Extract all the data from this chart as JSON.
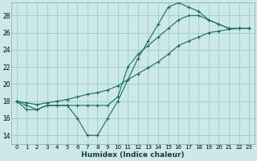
{
  "xlabel": "Humidex (Indice chaleur)",
  "xlim": [
    -0.5,
    23.5
  ],
  "ylim": [
    13.0,
    29.5
  ],
  "yticks": [
    14,
    16,
    18,
    20,
    22,
    24,
    26,
    28
  ],
  "xticks": [
    0,
    1,
    2,
    3,
    4,
    5,
    6,
    7,
    8,
    9,
    10,
    11,
    12,
    13,
    14,
    15,
    16,
    17,
    18,
    19,
    20,
    21,
    22,
    23
  ],
  "bg_color": "#cce8e8",
  "grid_color": "#99cccc",
  "line_color": "#1a6b5a",
  "line1_x": [
    0,
    1,
    2,
    3,
    4,
    5,
    6,
    7,
    8,
    9,
    10,
    11,
    12,
    13,
    14,
    15,
    16,
    17,
    18,
    19,
    20,
    21,
    22,
    23
  ],
  "line1_y": [
    18.0,
    17.0,
    17.0,
    17.5,
    17.5,
    17.5,
    16.0,
    14.0,
    14.0,
    16.0,
    18.0,
    20.5,
    23.0,
    25.0,
    27.0,
    29.0,
    29.5,
    29.0,
    28.5,
    27.5,
    27.0,
    26.5,
    26.5,
    26.5
  ],
  "line2_x": [
    0,
    1,
    2,
    3,
    4,
    5,
    6,
    7,
    8,
    9,
    10,
    11,
    12,
    13,
    14,
    15,
    16,
    17,
    18,
    19,
    20,
    21,
    22,
    23
  ],
  "line2_y": [
    18.0,
    17.5,
    17.0,
    17.5,
    17.5,
    17.5,
    17.5,
    17.5,
    17.5,
    17.5,
    18.5,
    22.0,
    23.5,
    24.5,
    25.5,
    26.5,
    27.5,
    28.0,
    28.0,
    27.5,
    27.0,
    26.5,
    26.5,
    26.5
  ],
  "line3_x": [
    0,
    1,
    2,
    3,
    4,
    5,
    6,
    7,
    8,
    9,
    10,
    11,
    12,
    13,
    14,
    15,
    16,
    17,
    18,
    19,
    20,
    21,
    22,
    23
  ],
  "line3_y": [
    18.0,
    17.8,
    17.6,
    17.8,
    18.0,
    18.2,
    18.5,
    18.8,
    19.0,
    19.3,
    19.8,
    20.5,
    21.2,
    21.9,
    22.6,
    23.5,
    24.5,
    25.0,
    25.5,
    26.0,
    26.2,
    26.4,
    26.5,
    26.5
  ]
}
